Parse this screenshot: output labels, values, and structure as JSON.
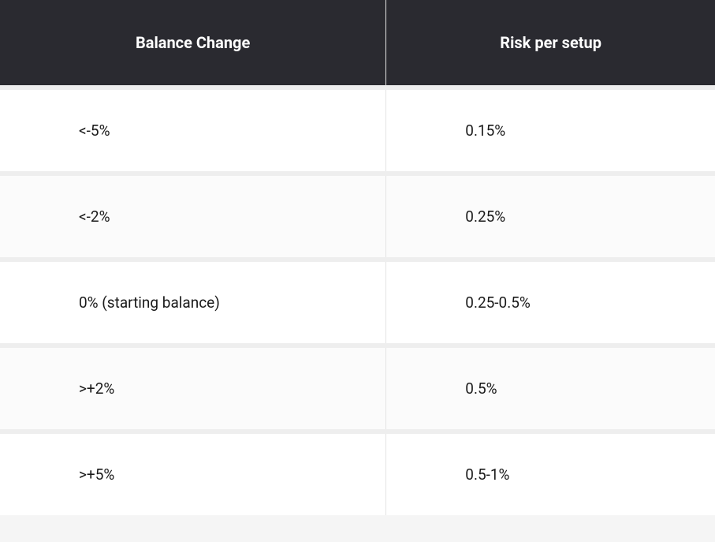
{
  "table": {
    "type": "table",
    "columns": [
      {
        "key": "balance_change",
        "label": "Balance Change",
        "width_pct": 54,
        "align": "left"
      },
      {
        "key": "risk_per_setup",
        "label": "Risk per setup",
        "width_pct": 46,
        "align": "left"
      }
    ],
    "rows": [
      {
        "balance_change": "<-5%",
        "risk_per_setup": "0.15%"
      },
      {
        "balance_change": "<-2%",
        "risk_per_setup": "0.25%"
      },
      {
        "balance_change": "0% (starting balance)",
        "risk_per_setup": "0.25-0.5%"
      },
      {
        "balance_change": ">+2%",
        "risk_per_setup": "0.5%"
      },
      {
        "balance_change": ">+5%",
        "risk_per_setup": "0.5-1%"
      }
    ],
    "header_bg": "#2a2a30",
    "header_text_color": "#ffffff",
    "header_fontsize": 20,
    "header_fontweight": 700,
    "row_bg_odd": "#ffffff",
    "row_bg_even": "#fbfbfb",
    "row_separator_color": "#eeeeee",
    "row_separator_width": 6,
    "cell_fontsize": 19,
    "cell_text_color": "#1a1a1a",
    "cell_padding_left": 100,
    "column_divider_color": "#e3e3e3"
  }
}
